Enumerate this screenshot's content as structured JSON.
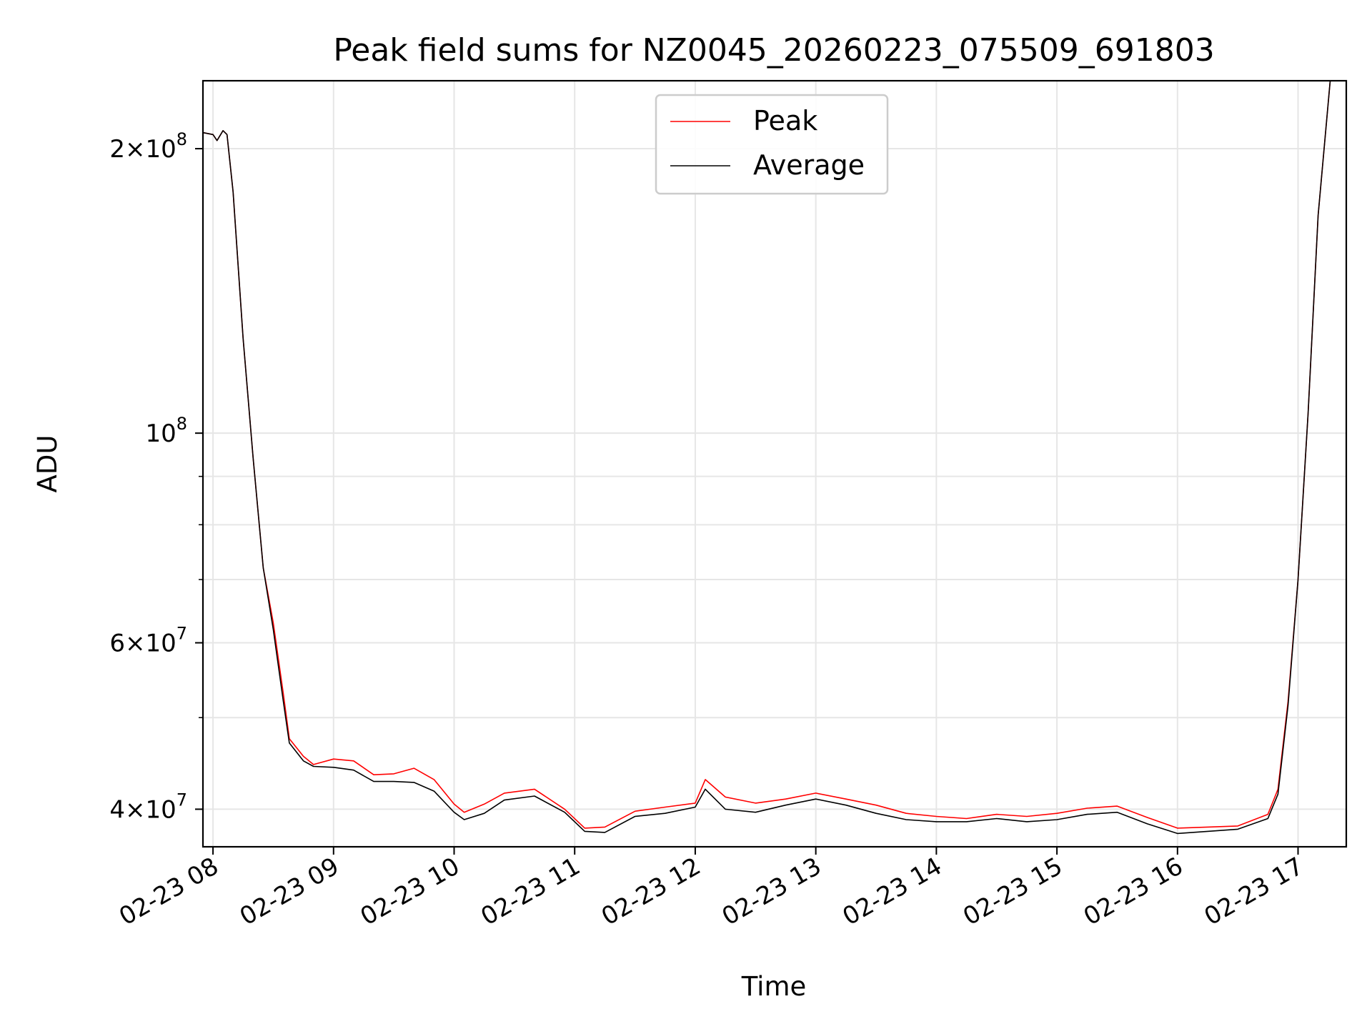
{
  "chart_data": {
    "type": "line",
    "title": "Peak field sums for NZ0045_20260223_075509_691803",
    "xlabel": "Time",
    "ylabel": "ADU",
    "yscale": "log",
    "xlim": [
      "2026-02-23T07:55",
      "2026-02-23T17:24"
    ],
    "ylim": [
      36500000,
      236000000
    ],
    "grid": true,
    "legend_position": "top-center",
    "x_ticks": [
      {
        "time": "2026-02-23T08:00",
        "label": "02-23 08"
      },
      {
        "time": "2026-02-23T09:00",
        "label": "02-23 09"
      },
      {
        "time": "2026-02-23T10:00",
        "label": "02-23 10"
      },
      {
        "time": "2026-02-23T11:00",
        "label": "02-23 11"
      },
      {
        "time": "2026-02-23T12:00",
        "label": "02-23 12"
      },
      {
        "time": "2026-02-23T13:00",
        "label": "02-23 13"
      },
      {
        "time": "2026-02-23T14:00",
        "label": "02-23 14"
      },
      {
        "time": "2026-02-23T15:00",
        "label": "02-23 15"
      },
      {
        "time": "2026-02-23T16:00",
        "label": "02-23 16"
      },
      {
        "time": "2026-02-23T17:00",
        "label": "02-23 17"
      }
    ],
    "y_ticks": [
      {
        "value": 200000000,
        "mant": "2×10",
        "exp": "8"
      },
      {
        "value": 100000000,
        "mant": "10",
        "exp": "8"
      },
      {
        "value": 60000000,
        "mant": "6×10",
        "exp": "7"
      },
      {
        "value": 40000000,
        "mant": "4×10",
        "exp": "7"
      }
    ],
    "y_minor_ticks": [
      50000000,
      70000000,
      80000000,
      90000000
    ],
    "series": [
      {
        "name": "Peak",
        "color": "#ff0000",
        "points": [
          [
            "2026-02-23T07:55",
            208000000
          ],
          [
            "2026-02-23T08:00",
            207000000
          ],
          [
            "2026-02-23T08:02",
            204000000
          ],
          [
            "2026-02-23T08:05",
            209000000
          ],
          [
            "2026-02-23T08:07",
            207000000
          ],
          [
            "2026-02-23T08:10",
            180000000
          ],
          [
            "2026-02-23T08:15",
            126000000
          ],
          [
            "2026-02-23T08:20",
            94000000
          ],
          [
            "2026-02-23T08:25",
            72000000
          ],
          [
            "2026-02-23T08:30",
            63000000
          ],
          [
            "2026-02-23T08:35",
            53000000
          ],
          [
            "2026-02-23T08:38",
            47500000
          ],
          [
            "2026-02-23T08:45",
            45500000
          ],
          [
            "2026-02-23T08:50",
            44600000
          ],
          [
            "2026-02-23T09:00",
            45200000
          ],
          [
            "2026-02-23T09:10",
            45000000
          ],
          [
            "2026-02-23T09:20",
            43500000
          ],
          [
            "2026-02-23T09:30",
            43600000
          ],
          [
            "2026-02-23T09:40",
            44200000
          ],
          [
            "2026-02-23T09:50",
            43000000
          ],
          [
            "2026-02-23T10:00",
            40500000
          ],
          [
            "2026-02-23T10:05",
            39700000
          ],
          [
            "2026-02-23T10:15",
            40500000
          ],
          [
            "2026-02-23T10:25",
            41600000
          ],
          [
            "2026-02-23T10:40",
            42000000
          ],
          [
            "2026-02-23T10:55",
            40000000
          ],
          [
            "2026-02-23T11:05",
            38200000
          ],
          [
            "2026-02-23T11:15",
            38300000
          ],
          [
            "2026-02-23T11:30",
            39800000
          ],
          [
            "2026-02-23T11:45",
            40200000
          ],
          [
            "2026-02-23T12:00",
            40600000
          ],
          [
            "2026-02-23T12:05",
            43000000
          ],
          [
            "2026-02-23T12:15",
            41200000
          ],
          [
            "2026-02-23T12:30",
            40600000
          ],
          [
            "2026-02-23T12:45",
            41000000
          ],
          [
            "2026-02-23T13:00",
            41600000
          ],
          [
            "2026-02-23T13:15",
            41000000
          ],
          [
            "2026-02-23T13:30",
            40400000
          ],
          [
            "2026-02-23T13:45",
            39600000
          ],
          [
            "2026-02-23T14:00",
            39300000
          ],
          [
            "2026-02-23T14:15",
            39100000
          ],
          [
            "2026-02-23T14:30",
            39500000
          ],
          [
            "2026-02-23T14:45",
            39300000
          ],
          [
            "2026-02-23T15:00",
            39600000
          ],
          [
            "2026-02-23T15:15",
            40100000
          ],
          [
            "2026-02-23T15:30",
            40300000
          ],
          [
            "2026-02-23T15:45",
            39200000
          ],
          [
            "2026-02-23T16:00",
            38200000
          ],
          [
            "2026-02-23T16:15",
            38300000
          ],
          [
            "2026-02-23T16:30",
            38400000
          ],
          [
            "2026-02-23T16:45",
            39500000
          ],
          [
            "2026-02-23T16:50",
            42000000
          ],
          [
            "2026-02-23T16:55",
            52000000
          ],
          [
            "2026-02-23T17:00",
            70000000
          ],
          [
            "2026-02-23T17:05",
            105000000
          ],
          [
            "2026-02-23T17:10",
            170000000
          ],
          [
            "2026-02-23T17:16",
            236000000
          ],
          [
            "2026-02-23T17:24",
            236000000
          ]
        ]
      },
      {
        "name": "Average",
        "color": "#000000",
        "points": [
          [
            "2026-02-23T07:55",
            208000000
          ],
          [
            "2026-02-23T08:00",
            207000000
          ],
          [
            "2026-02-23T08:02",
            204000000
          ],
          [
            "2026-02-23T08:05",
            209000000
          ],
          [
            "2026-02-23T08:07",
            207000000
          ],
          [
            "2026-02-23T08:10",
            180000000
          ],
          [
            "2026-02-23T08:15",
            126000000
          ],
          [
            "2026-02-23T08:20",
            94000000
          ],
          [
            "2026-02-23T08:25",
            72000000
          ],
          [
            "2026-02-23T08:30",
            62000000
          ],
          [
            "2026-02-23T08:35",
            52000000
          ],
          [
            "2026-02-23T08:38",
            47000000
          ],
          [
            "2026-02-23T08:45",
            45000000
          ],
          [
            "2026-02-23T08:50",
            44400000
          ],
          [
            "2026-02-23T09:00",
            44300000
          ],
          [
            "2026-02-23T09:10",
            44000000
          ],
          [
            "2026-02-23T09:20",
            42800000
          ],
          [
            "2026-02-23T09:30",
            42800000
          ],
          [
            "2026-02-23T09:40",
            42700000
          ],
          [
            "2026-02-23T09:50",
            41800000
          ],
          [
            "2026-02-23T10:00",
            39700000
          ],
          [
            "2026-02-23T10:05",
            39000000
          ],
          [
            "2026-02-23T10:15",
            39600000
          ],
          [
            "2026-02-23T10:25",
            40900000
          ],
          [
            "2026-02-23T10:40",
            41300000
          ],
          [
            "2026-02-23T10:55",
            39700000
          ],
          [
            "2026-02-23T11:05",
            37900000
          ],
          [
            "2026-02-23T11:15",
            37800000
          ],
          [
            "2026-02-23T11:30",
            39300000
          ],
          [
            "2026-02-23T11:45",
            39600000
          ],
          [
            "2026-02-23T12:00",
            40200000
          ],
          [
            "2026-02-23T12:05",
            42000000
          ],
          [
            "2026-02-23T12:15",
            40000000
          ],
          [
            "2026-02-23T12:30",
            39700000
          ],
          [
            "2026-02-23T12:45",
            40400000
          ],
          [
            "2026-02-23T13:00",
            41000000
          ],
          [
            "2026-02-23T13:15",
            40400000
          ],
          [
            "2026-02-23T13:30",
            39600000
          ],
          [
            "2026-02-23T13:45",
            39000000
          ],
          [
            "2026-02-23T14:00",
            38800000
          ],
          [
            "2026-02-23T14:15",
            38800000
          ],
          [
            "2026-02-23T14:30",
            39100000
          ],
          [
            "2026-02-23T14:45",
            38800000
          ],
          [
            "2026-02-23T15:00",
            39000000
          ],
          [
            "2026-02-23T15:15",
            39500000
          ],
          [
            "2026-02-23T15:30",
            39700000
          ],
          [
            "2026-02-23T15:45",
            38600000
          ],
          [
            "2026-02-23T16:00",
            37700000
          ],
          [
            "2026-02-23T16:15",
            37900000
          ],
          [
            "2026-02-23T16:30",
            38100000
          ],
          [
            "2026-02-23T16:45",
            39100000
          ],
          [
            "2026-02-23T16:50",
            41500000
          ],
          [
            "2026-02-23T16:55",
            51500000
          ],
          [
            "2026-02-23T17:00",
            70000000
          ],
          [
            "2026-02-23T17:05",
            105000000
          ],
          [
            "2026-02-23T17:10",
            170000000
          ],
          [
            "2026-02-23T17:16",
            236000000
          ],
          [
            "2026-02-23T17:24",
            236000000
          ]
        ]
      }
    ]
  }
}
